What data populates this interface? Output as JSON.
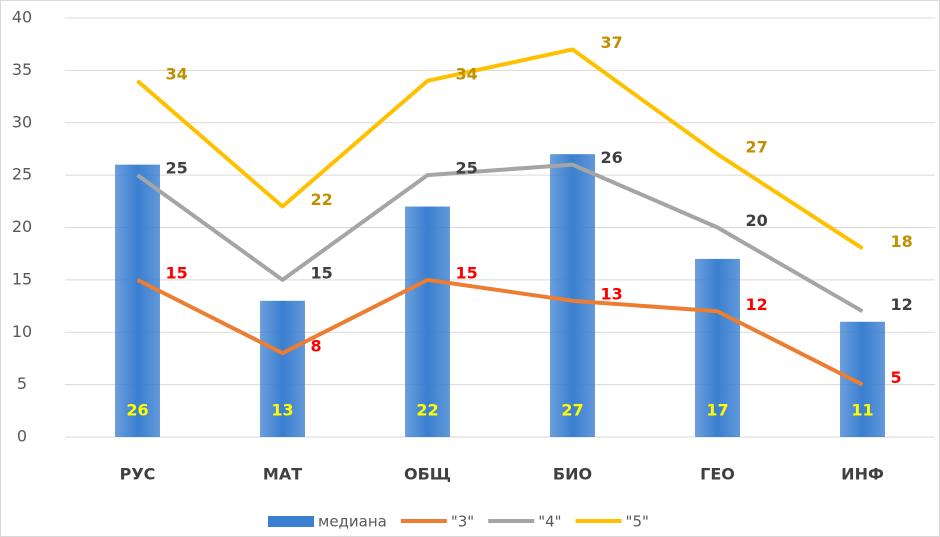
{
  "chart_data": {
    "type": "bar",
    "categories": [
      "РУС",
      "МАТ",
      "ОБЩ",
      "БИО",
      "ГЕО",
      "ИНФ"
    ],
    "ylim": [
      0,
      40
    ],
    "yticks": [
      0,
      5,
      10,
      15,
      20,
      25,
      30,
      35,
      40
    ],
    "grid": true,
    "legend": "bottom",
    "series": [
      {
        "name": "медиана",
        "type": "bar",
        "color": "#3a7fd0",
        "label_color": "#ffff00",
        "values": [
          26,
          13,
          22,
          27,
          17,
          11
        ]
      },
      {
        "name": "\"3\"",
        "type": "line",
        "color": "#ed7d31",
        "label_color": "#ff0000",
        "values": [
          15,
          8,
          15,
          13,
          12,
          5
        ]
      },
      {
        "name": "\"4\"",
        "type": "line",
        "color": "#a5a5a5",
        "label_color": "#404040",
        "values": [
          25,
          15,
          25,
          26,
          20,
          12
        ]
      },
      {
        "name": "\"5\"",
        "type": "line",
        "color": "#ffc000",
        "label_color": "#bf9000",
        "values": [
          34,
          22,
          34,
          37,
          27,
          18
        ]
      }
    ]
  }
}
